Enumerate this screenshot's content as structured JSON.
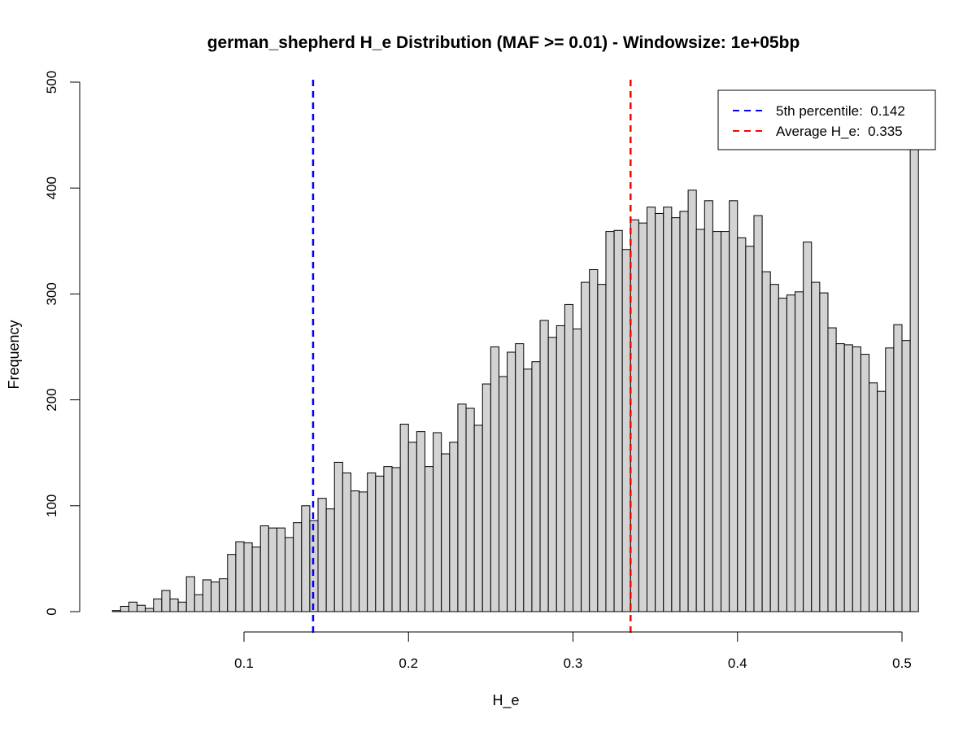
{
  "chart_data": {
    "type": "bar",
    "title": "german_shepherd H_e Distribution (MAF >= 0.01) - Windowsize: 1e+05bp",
    "xlabel": "H_e",
    "ylabel": "Frequency",
    "xlim": [
      0.1,
      0.5
    ],
    "ylim": [
      0,
      500
    ],
    "x_ticks": [
      0.1,
      0.2,
      0.3,
      0.4,
      0.5
    ],
    "x_tick_labels": [
      "0.1",
      "0.2",
      "0.3",
      "0.4",
      "0.5"
    ],
    "y_ticks": [
      0,
      100,
      200,
      300,
      400,
      500
    ],
    "y_tick_labels": [
      "0",
      "100",
      "200",
      "300",
      "400",
      "500"
    ],
    "bar_color": "#d3d3d3",
    "bin_start": 0.02,
    "bin_width": 0.005,
    "values": [
      1,
      5,
      9,
      6,
      3,
      12,
      20,
      12,
      9,
      33,
      16,
      30,
      28,
      31,
      54,
      66,
      65,
      61,
      81,
      79,
      79,
      70,
      84,
      100,
      86,
      107,
      97,
      141,
      131,
      114,
      113,
      131,
      128,
      137,
      136,
      177,
      160,
      170,
      137,
      169,
      149,
      160,
      196,
      192,
      176,
      215,
      250,
      222,
      245,
      253,
      229,
      236,
      275,
      259,
      270,
      290,
      267,
      311,
      323,
      309,
      359,
      360,
      342,
      370,
      367,
      382,
      376,
      382,
      372,
      378,
      398,
      361,
      388,
      359,
      359,
      388,
      353,
      345,
      374,
      321,
      309,
      296,
      299,
      302,
      349,
      311,
      301,
      268,
      253,
      252,
      250,
      243,
      216,
      208,
      249,
      271,
      256,
      466
    ],
    "reference_lines": [
      {
        "x": 0.142,
        "color": "#0000ff",
        "style": "dashed",
        "legend": "5th percentile:  0.142"
      },
      {
        "x": 0.335,
        "color": "#ff0000",
        "style": "dashed",
        "legend": "Average H_e:  0.335"
      }
    ],
    "legend_position": "top-right"
  }
}
